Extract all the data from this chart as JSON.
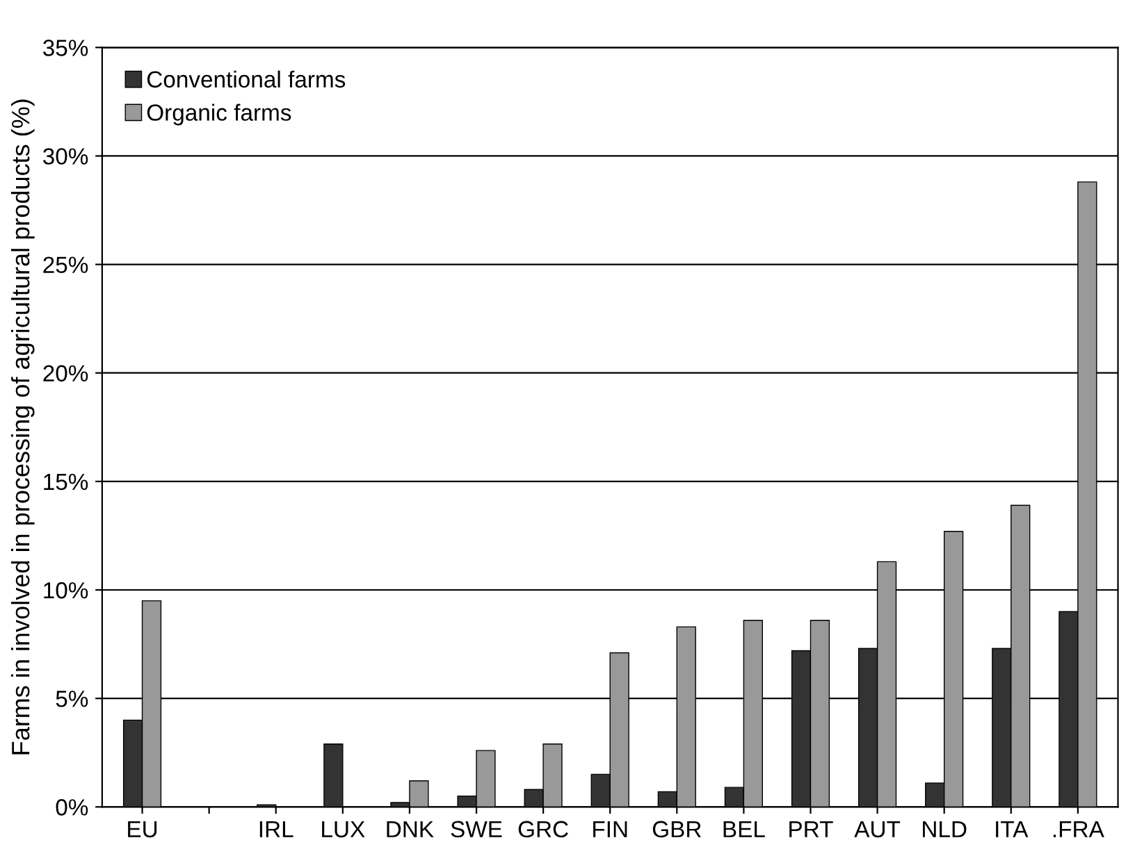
{
  "chart_data": {
    "type": "bar",
    "ylabel": "Farms in involved in processing of agricultural products (%)",
    "categories": [
      "EU",
      null,
      "IRL",
      "LUX",
      "DNK",
      "SWE",
      "GRC",
      "FIN",
      "GBR",
      "BEL",
      "PRT",
      "AUT",
      "NLD",
      "ITA",
      ".FRA"
    ],
    "series": [
      {
        "name": "Conventional farms",
        "color": "#333333",
        "values": [
          4.0,
          null,
          0.1,
          2.9,
          0.2,
          0.5,
          0.8,
          1.5,
          0.7,
          0.9,
          7.2,
          7.3,
          1.1,
          7.3,
          9.0
        ]
      },
      {
        "name": "Organic farms",
        "color": "#999999",
        "values": [
          9.5,
          null,
          null,
          null,
          1.2,
          2.6,
          2.9,
          7.1,
          8.3,
          8.6,
          8.6,
          11.3,
          12.7,
          13.9,
          28.8
        ]
      }
    ],
    "ylim": [
      0,
      35
    ],
    "yticks": [
      {
        "value": 0,
        "label": "0%"
      },
      {
        "value": 5,
        "label": "5%"
      },
      {
        "value": 10,
        "label": "10%"
      },
      {
        "value": 15,
        "label": "15%"
      },
      {
        "value": 20,
        "label": "20%"
      },
      {
        "value": 25,
        "label": "25%"
      },
      {
        "value": 30,
        "label": "30%"
      },
      {
        "value": 35,
        "label": "35%"
      }
    ],
    "grid": "y",
    "legend": "top left"
  }
}
